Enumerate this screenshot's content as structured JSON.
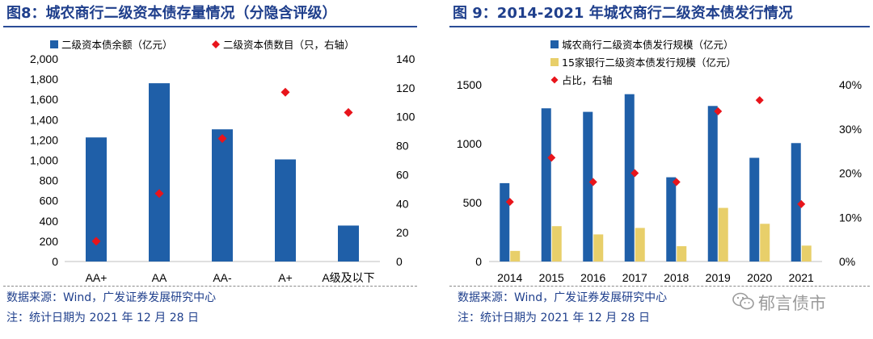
{
  "left": {
    "title": "图8：城农商行二级资本债存量情况（分隐含评级）",
    "source": "数据来源：Wind，广发证券发展研究中心",
    "note": "注：统计日期为 2021 年 12 月 28 日"
  },
  "right": {
    "title": "图 9：2014-2021 年城农商行二级资本债发行情况",
    "source": "数据来源：Wind，广发证券发展研究中心",
    "note": "注：统计日期为 2021 年 12 月 28 日"
  },
  "watermark": "郁言债市",
  "colors": {
    "blue": "#1f5fa8",
    "yellow": "#e8cf6a",
    "red": "#e8141b",
    "title": "#1f3f8c"
  },
  "chart_data": [
    {
      "type": "bar",
      "title": "城农商行二级资本债存量情况（分隐含评级）",
      "categories": [
        "AA+",
        "AA",
        "AA-",
        "A+",
        "A级及以下"
      ],
      "series": [
        {
          "name": "二级资本债余额（亿元）",
          "kind": "bar",
          "axis": "left",
          "values": [
            1225,
            1760,
            1305,
            1008,
            355
          ]
        },
        {
          "name": "二级资本债数目（只，右轴）",
          "kind": "marker",
          "axis": "right",
          "values": [
            14,
            47,
            85,
            117,
            103
          ]
        }
      ],
      "ylim_left": [
        0,
        2000
      ],
      "yticks_left": [
        "0",
        "200",
        "400",
        "600",
        "800",
        "1,000",
        "1,200",
        "1,400",
        "1,600",
        "1,800",
        "2,000"
      ],
      "ylim_right": [
        0,
        140
      ],
      "yticks_right": [
        "0",
        "20",
        "40",
        "60",
        "80",
        "100",
        "120",
        "140"
      ],
      "legend_position": "top-left"
    },
    {
      "type": "bar",
      "title": "2014-2021 年城农商行二级资本债发行情况",
      "categories": [
        "2014",
        "2015",
        "2016",
        "2017",
        "2018",
        "2019",
        "2020",
        "2021"
      ],
      "series": [
        {
          "name": "城农商行二级资本债发行规模（亿元）",
          "kind": "bar",
          "axis": "left",
          "values": [
            665,
            1300,
            1270,
            1420,
            715,
            1320,
            880,
            1005
          ]
        },
        {
          "name": "15家银行二级资本债发行规模（亿元）",
          "kind": "bar",
          "axis": "left",
          "values": [
            90,
            300,
            230,
            285,
            130,
            455,
            320,
            135
          ]
        },
        {
          "name": "占比，右轴",
          "kind": "marker",
          "axis": "right",
          "values": [
            13.5,
            23.5,
            18,
            20,
            18,
            34,
            36.5,
            13
          ]
        }
      ],
      "ylim_left": [
        0,
        1500
      ],
      "yticks_left": [
        "0",
        "500",
        "1000",
        "1500"
      ],
      "ylim_right": [
        0,
        40
      ],
      "yticks_right": [
        "0%",
        "10%",
        "20%",
        "30%",
        "40%"
      ],
      "legend_position": "top-left"
    }
  ]
}
